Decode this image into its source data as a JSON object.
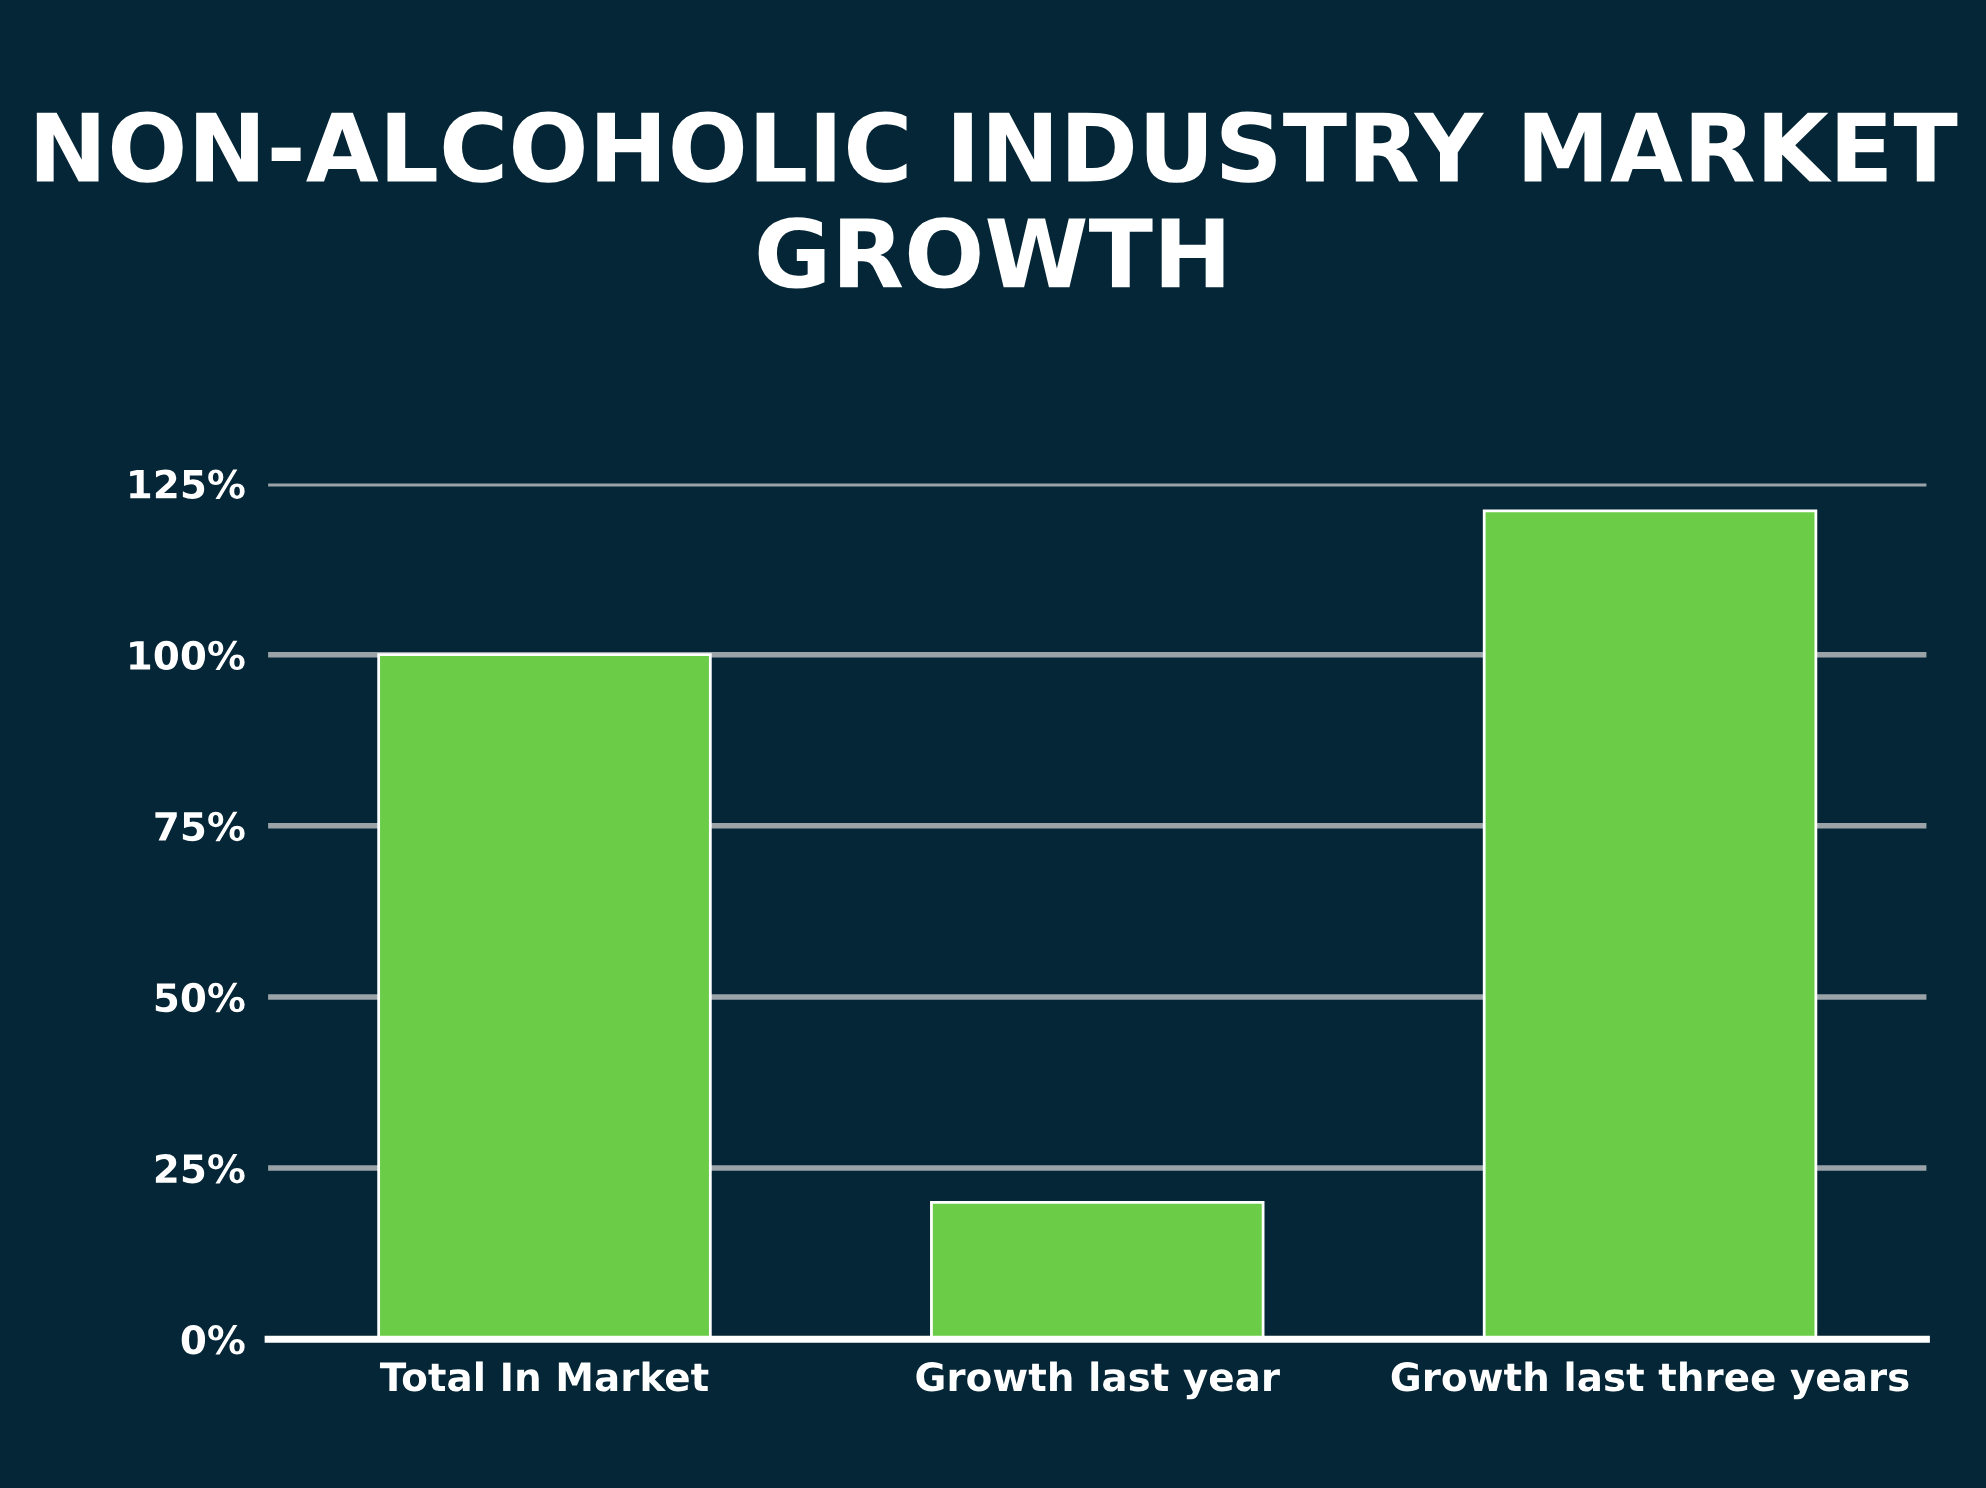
{
  "chart_data": {
    "type": "bar",
    "title": "NON-ALCOHOLIC INDUSTRY MARKET GROWTH",
    "categories": [
      "Total In Market",
      "Growth last year",
      "Growth last three years"
    ],
    "values": [
      100,
      20,
      121
    ],
    "color": "#6acc47",
    "ylim": [
      0,
      125
    ],
    "yticks": [
      {
        "value": 0,
        "label": "0%"
      },
      {
        "value": 25,
        "label": "25%"
      },
      {
        "value": 50,
        "label": "50%"
      },
      {
        "value": 75,
        "label": "75%"
      },
      {
        "value": 100,
        "label": "100%"
      },
      {
        "value": 125,
        "label": "125%"
      }
    ],
    "grid": "y",
    "legend": false
  }
}
